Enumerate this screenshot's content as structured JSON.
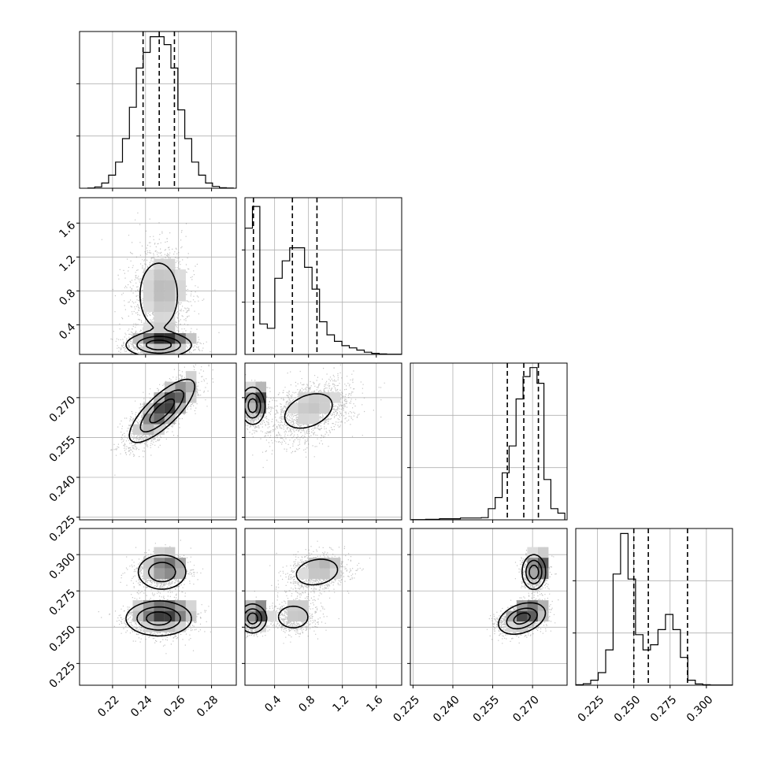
{
  "chart_data": {
    "type": "corner",
    "parameters": [
      {
        "index": 0,
        "range": [
          0.2,
          0.295
        ],
        "ticks": [
          0.22,
          0.24,
          0.26,
          0.28
        ],
        "tick_labels": [
          "0.22",
          "0.24",
          "0.26",
          "0.28"
        ]
      },
      {
        "index": 1,
        "range": [
          0.05,
          1.9
        ],
        "ticks": [
          0.4,
          0.8,
          1.2,
          1.6
        ],
        "tick_labels": [
          "0.4",
          "0.8",
          "1.2",
          "1.6"
        ]
      },
      {
        "index": 2,
        "range": [
          0.224,
          0.283
        ],
        "ticks": [
          0.225,
          0.24,
          0.255,
          0.27
        ],
        "tick_labels": [
          "0.225",
          "0.240",
          "0.255",
          "0.270"
        ]
      },
      {
        "index": 3,
        "range": [
          0.21,
          0.318
        ],
        "ticks": [
          0.225,
          0.25,
          0.275,
          0.3
        ],
        "tick_labels": [
          "0.225",
          "0.250",
          "0.275",
          "0.300"
        ]
      }
    ],
    "histograms": [
      {
        "param": 0,
        "bin_start": 0.205,
        "bin_width": 0.0042,
        "counts": [
          0.1,
          0.5,
          2,
          5,
          10,
          19,
          31,
          46,
          52,
          58,
          58,
          55,
          46,
          30,
          19,
          10,
          5,
          2,
          0.7,
          0.2,
          0.1
        ],
        "ymax": 60,
        "quantiles": [
          0.2385,
          0.2483,
          0.2575
        ]
      },
      {
        "param": 1,
        "bin_start": 0.05,
        "bin_width": 0.088,
        "counts": [
          58,
          68,
          14,
          12,
          35,
          43,
          49,
          49,
          40,
          30,
          15,
          9,
          6,
          4,
          3,
          2,
          1,
          0.5,
          0.2,
          0.1,
          0.1
        ],
        "ymax": 72,
        "quantiles": [
          0.15,
          0.61,
          0.9
        ]
      },
      {
        "param": 2,
        "bin_start": 0.2245,
        "bin_width": 0.00262,
        "counts": [
          0.1,
          0.1,
          0.2,
          0.2,
          0.5,
          0.5,
          0.5,
          0.8,
          0.8,
          0.8,
          1,
          5,
          10,
          21,
          33,
          54,
          64,
          68,
          61,
          18,
          5,
          3
        ],
        "ymax": 70,
        "quantiles": [
          0.2605,
          0.2667,
          0.2722
        ]
      },
      {
        "param": 3,
        "bin_start": 0.21,
        "bin_width": 0.00515,
        "counts": [
          0.2,
          0.6,
          2,
          5,
          14,
          44,
          60,
          42,
          20,
          14,
          16,
          22,
          28,
          22,
          11,
          2,
          0.5,
          0.2,
          0.1,
          0.1,
          0.1
        ],
        "ymax": 62,
        "quantiles": [
          0.25,
          0.26,
          0.287
        ]
      }
    ],
    "scatter_2d": [
      {
        "x": 0,
        "y": 1,
        "modes": [
          {
            "mx": 0.248,
            "my": 0.75,
            "sx": 0.009,
            "sy": 0.3,
            "rho": 0.0,
            "w": 0.55
          },
          {
            "mx": 0.248,
            "my": 0.16,
            "sx": 0.01,
            "sy": 0.07,
            "rho": 0.0,
            "w": 0.45
          }
        ]
      },
      {
        "x": 0,
        "y": 2,
        "modes": [
          {
            "mx": 0.25,
            "my": 0.265,
            "sx": 0.01,
            "sy": 0.006,
            "rho": 0.78,
            "w": 1.0
          }
        ]
      },
      {
        "x": 1,
        "y": 2,
        "modes": [
          {
            "mx": 0.14,
            "my": 0.267,
            "sx": 0.07,
            "sy": 0.0035,
            "rho": 0.0,
            "w": 0.4
          },
          {
            "mx": 0.8,
            "my": 0.265,
            "sx": 0.26,
            "sy": 0.006,
            "rho": 0.35,
            "w": 0.6
          }
        ]
      },
      {
        "x": 0,
        "y": 3,
        "modes": [
          {
            "mx": 0.248,
            "my": 0.256,
            "sx": 0.01,
            "sy": 0.006,
            "rho": 0.0,
            "w": 0.62
          },
          {
            "mx": 0.25,
            "my": 0.288,
            "sx": 0.008,
            "sy": 0.0065,
            "rho": 0.0,
            "w": 0.38
          }
        ]
      },
      {
        "x": 1,
        "y": 3,
        "modes": [
          {
            "mx": 0.14,
            "my": 0.256,
            "sx": 0.08,
            "sy": 0.005,
            "rho": 0.0,
            "w": 0.38
          },
          {
            "mx": 0.62,
            "my": 0.257,
            "sx": 0.14,
            "sy": 0.006,
            "rho": 0.0,
            "w": 0.24
          },
          {
            "mx": 0.9,
            "my": 0.288,
            "sx": 0.18,
            "sy": 0.0065,
            "rho": 0.2,
            "w": 0.38
          }
        ]
      },
      {
        "x": 2,
        "y": 3,
        "modes": [
          {
            "mx": 0.266,
            "my": 0.256,
            "sx": 0.0045,
            "sy": 0.0055,
            "rho": 0.35,
            "w": 0.62
          },
          {
            "mx": 0.2705,
            "my": 0.288,
            "sx": 0.0022,
            "sy": 0.006,
            "rho": 0.0,
            "w": 0.38
          }
        ]
      }
    ],
    "contour_levels": [
      0.14,
      0.42,
      0.75
    ],
    "grid": true,
    "legend": "none"
  }
}
